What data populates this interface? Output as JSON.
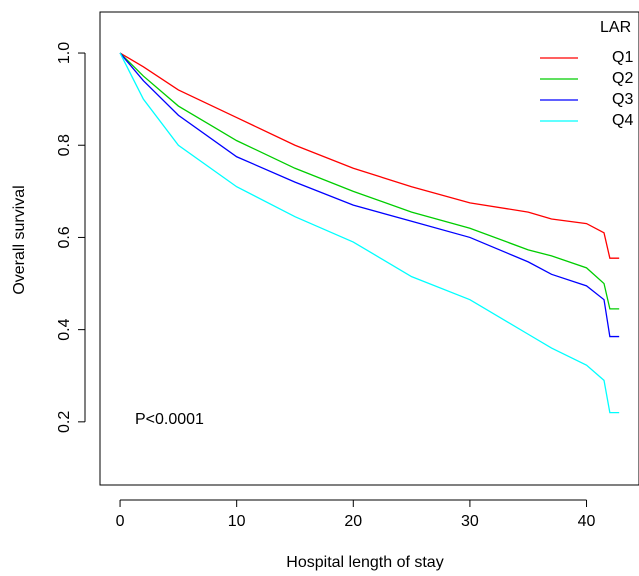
{
  "chart_data": {
    "type": "line",
    "x_label": "Hospital length of stay",
    "y_label": "Overall survival",
    "annotation": "P<0.0001",
    "legend_title": "LAR",
    "legend": "topright",
    "xlim": [
      -1.72,
      44.5
    ],
    "ylim": [
      0.063,
      1.089
    ],
    "xticks": [
      0,
      10,
      20,
      30,
      40
    ],
    "yticks": [
      {
        "value": 0.2,
        "label": "0.2"
      },
      {
        "value": 0.4,
        "label": "0.4"
      },
      {
        "value": 0.6,
        "label": "0.6"
      },
      {
        "value": 0.8,
        "label": "0.8"
      },
      {
        "value": 1.0,
        "label": "1.0"
      }
    ],
    "x": [
      0,
      2,
      5,
      10,
      15,
      20,
      25,
      30,
      35,
      37,
      40,
      41.5,
      42,
      42.8
    ],
    "series": [
      {
        "name": "Q1",
        "color": "#ff0000",
        "values": [
          1.0,
          0.97,
          0.92,
          0.86,
          0.8,
          0.75,
          0.71,
          0.675,
          0.655,
          0.64,
          0.63,
          0.61,
          0.555,
          0.555
        ]
      },
      {
        "name": "Q2",
        "color": "#00cd00",
        "values": [
          1.0,
          0.95,
          0.885,
          0.81,
          0.75,
          0.7,
          0.655,
          0.62,
          0.573,
          0.56,
          0.534,
          0.5,
          0.445,
          0.445
        ]
      },
      {
        "name": "Q3",
        "color": "#0000ff",
        "values": [
          1.0,
          0.94,
          0.865,
          0.775,
          0.72,
          0.67,
          0.635,
          0.6,
          0.547,
          0.52,
          0.495,
          0.465,
          0.385,
          0.385
        ]
      },
      {
        "name": "Q4",
        "color": "#00ffff",
        "values": [
          1.0,
          0.9,
          0.8,
          0.71,
          0.645,
          0.59,
          0.515,
          0.465,
          0.39,
          0.36,
          0.323,
          0.29,
          0.22,
          0.22
        ]
      }
    ]
  }
}
